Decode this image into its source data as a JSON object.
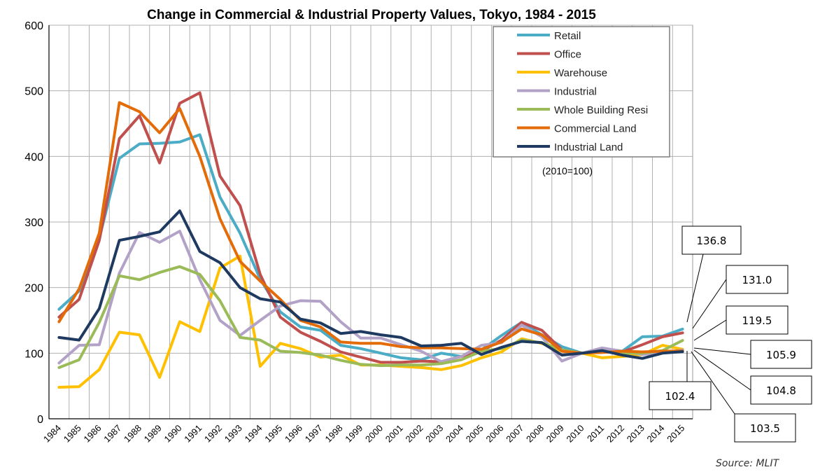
{
  "chart_data": {
    "type": "line",
    "title": "Change in Commercial & Industrial Property Values, Tokyo, 1984 - 2015",
    "categories": [
      "1984",
      "1985",
      "1986",
      "1987",
      "1988",
      "1989",
      "1990",
      "1991",
      "1992",
      "1993",
      "1994",
      "1995",
      "1996",
      "1997",
      "1998",
      "1999",
      "2000",
      "2001",
      "2002",
      "2003",
      "2004",
      "2005",
      "2006",
      "2007",
      "2008",
      "2009",
      "2010",
      "2011",
      "2012",
      "2013",
      "2014",
      "2015"
    ],
    "x": [
      1984.5,
      1985.5,
      1986.5,
      1987.5,
      1988.5,
      1989.5,
      1990.5,
      1991.5,
      1992.5,
      1993.5,
      1994.5,
      1995.5,
      1996.5,
      1997.5,
      1998.5,
      1999.5,
      2000.5,
      2001.5,
      2002.5,
      2003.5,
      2004.5,
      2005.5,
      2006.5,
      2007.5,
      2008.5,
      2009.5,
      2010.5,
      2011.5,
      2012.5,
      2013.5,
      2014.5,
      2015.5
    ],
    "ylim": [
      0,
      600
    ],
    "yticks": [
      0,
      100,
      200,
      300,
      400,
      500,
      600
    ],
    "grid": true,
    "legend_position": "top-right",
    "note": "(2010=100)",
    "source": "Source: MLIT",
    "series": [
      {
        "name": "Retail",
        "color": "#4bacc6",
        "values": [
          167,
          195,
          275,
          397,
          419,
          420,
          422,
          433,
          338,
          283,
          213,
          163,
          140,
          135,
          112,
          107,
          100,
          93,
          90,
          100,
          95,
          105,
          127,
          147,
          128,
          110,
          100,
          105,
          103,
          125,
          126,
          136.8
        ]
      },
      {
        "name": "Office",
        "color": "#c0504d",
        "values": [
          155,
          182,
          272,
          427,
          462,
          390,
          481,
          497,
          370,
          325,
          220,
          155,
          132,
          118,
          102,
          94,
          86,
          86,
          88,
          87,
          95,
          103,
          120,
          147,
          135,
          105,
          100,
          102,
          102,
          113,
          125,
          131.0
        ]
      },
      {
        "name": "Warehouse",
        "color": "#ffc000",
        "values": [
          48,
          49,
          75,
          132,
          128,
          63,
          148,
          133,
          230,
          248,
          80,
          115,
          107,
          94,
          97,
          82,
          82,
          80,
          78,
          75,
          81,
          93,
          102,
          122,
          115,
          103,
          100,
          93,
          95,
          98,
          112,
          105.9
        ]
      },
      {
        "name": "Industrial",
        "color": "#b3a2c7",
        "values": [
          85,
          112,
          113,
          222,
          284,
          269,
          286,
          212,
          150,
          127,
          150,
          172,
          180,
          179,
          148,
          123,
          123,
          113,
          103,
          87,
          95,
          112,
          116,
          143,
          125,
          88,
          100,
          108,
          103,
          98,
          101,
          104.8
        ]
      },
      {
        "name": "Whole Building Resi",
        "color": "#9bbb59",
        "values": [
          78,
          90,
          147,
          218,
          212,
          223,
          232,
          220,
          180,
          124,
          120,
          103,
          101,
          97,
          89,
          83,
          81,
          82,
          82,
          84,
          90,
          103,
          107,
          120,
          116,
          105,
          100,
          103,
          100,
          100,
          104,
          119.5
        ]
      },
      {
        "name": "Commercial Land",
        "color": "#e36c09",
        "values": [
          148,
          198,
          283,
          482,
          468,
          436,
          473,
          400,
          305,
          240,
          210,
          182,
          150,
          140,
          117,
          115,
          115,
          110,
          108,
          108,
          107,
          106,
          117,
          137,
          128,
          103,
          100,
          101,
          103,
          102,
          103,
          103.5
        ]
      },
      {
        "name": "Industrial Land",
        "color": "#1f3a60",
        "values": [
          124,
          120,
          168,
          272,
          278,
          285,
          317,
          255,
          238,
          200,
          183,
          178,
          152,
          146,
          130,
          133,
          128,
          124,
          111,
          112,
          115,
          98,
          109,
          118,
          116,
          97,
          100,
          104,
          97,
          92,
          100,
          102.4
        ]
      }
    ],
    "callouts": [
      "136.8",
      "131.0",
      "119.5",
      "105.9",
      "104.8",
      "103.5",
      "102.4"
    ]
  }
}
